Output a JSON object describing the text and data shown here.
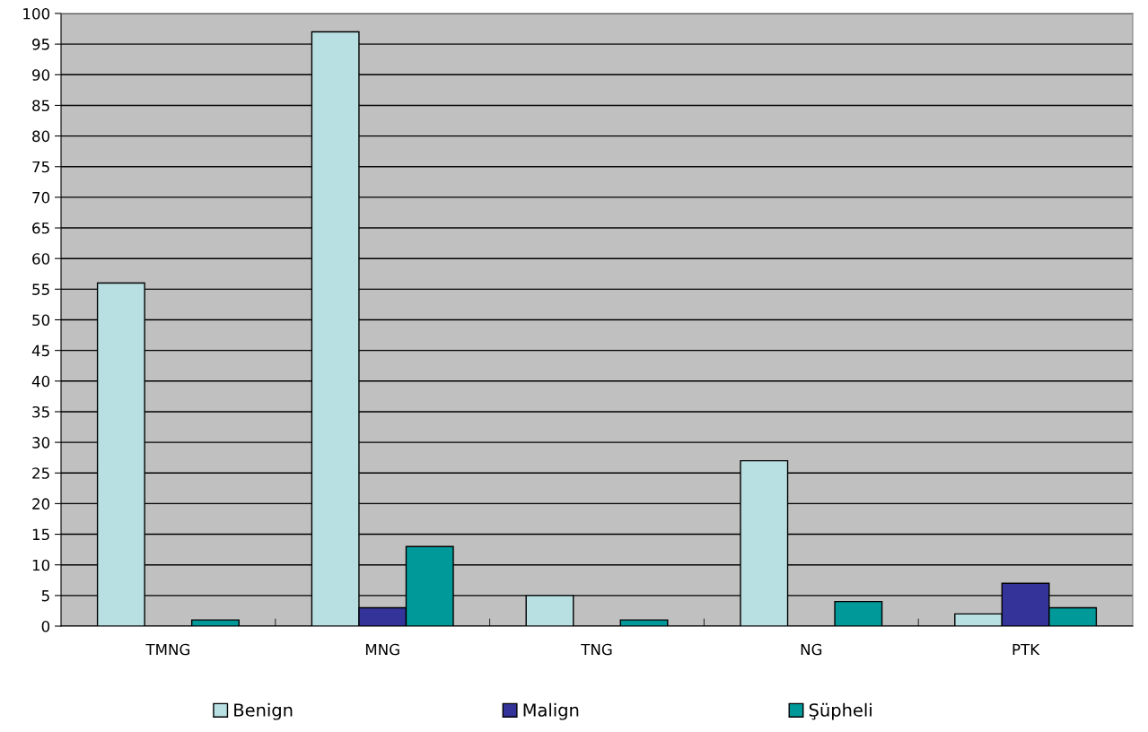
{
  "chart_data": {
    "type": "bar",
    "categories": [
      "TMNG",
      "MNG",
      "TNG",
      "NG",
      "PTK"
    ],
    "series": [
      {
        "name": "Benign",
        "color": "#b8e0e3",
        "values": [
          56,
          97,
          5,
          27,
          2
        ]
      },
      {
        "name": "Malign",
        "color": "#333399",
        "values": [
          0,
          3,
          0,
          0,
          7
        ]
      },
      {
        "name": "Şüpheli",
        "color": "#009999",
        "values": [
          1,
          13,
          1,
          4,
          3
        ]
      }
    ],
    "ylim": [
      0,
      100
    ],
    "yticks": [
      0,
      5,
      10,
      15,
      20,
      25,
      30,
      35,
      40,
      45,
      50,
      55,
      60,
      65,
      70,
      75,
      80,
      85,
      90,
      95,
      100
    ],
    "grid": "y",
    "legend": "bottom"
  }
}
